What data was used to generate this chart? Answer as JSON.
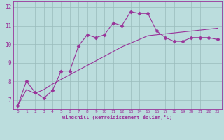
{
  "line1_x": [
    0,
    1,
    2,
    3,
    4,
    5,
    6,
    7,
    8,
    9,
    10,
    11,
    12,
    13,
    14,
    15,
    16,
    17,
    18,
    19,
    20,
    21,
    22,
    23
  ],
  "line1_y": [
    6.7,
    8.0,
    7.4,
    7.1,
    7.5,
    8.55,
    8.55,
    9.9,
    10.5,
    10.35,
    10.5,
    11.15,
    11.0,
    11.75,
    11.65,
    11.65,
    10.7,
    10.35,
    10.15,
    10.15,
    10.35,
    10.35,
    10.35,
    10.25
  ],
  "line2_x": [
    0,
    1,
    2,
    3,
    4,
    5,
    6,
    7,
    8,
    9,
    10,
    11,
    12,
    13,
    14,
    15,
    16,
    17,
    18,
    19,
    20,
    21,
    22,
    23
  ],
  "line2_y": [
    6.7,
    7.55,
    7.35,
    7.55,
    7.85,
    8.1,
    8.35,
    8.6,
    8.85,
    9.1,
    9.35,
    9.6,
    9.85,
    10.05,
    10.25,
    10.45,
    10.5,
    10.55,
    10.6,
    10.65,
    10.7,
    10.75,
    10.8,
    10.85
  ],
  "line_color": "#993399",
  "bg_color": "#bbdddd",
  "plot_bg_color": "#bbdddd",
  "xlabel": "Windchill (Refroidissement éolien,°C)",
  "xlim": [
    -0.5,
    23.5
  ],
  "ylim": [
    6.5,
    12.3
  ],
  "yticks": [
    7,
    8,
    9,
    10,
    11,
    12
  ],
  "xticks": [
    0,
    1,
    2,
    3,
    4,
    5,
    6,
    7,
    8,
    9,
    10,
    11,
    12,
    13,
    14,
    15,
    16,
    17,
    18,
    19,
    20,
    21,
    22,
    23
  ],
  "grid_color": "#99bbbb",
  "marker": "D",
  "markersize": 2.5,
  "linewidth": 0.8
}
